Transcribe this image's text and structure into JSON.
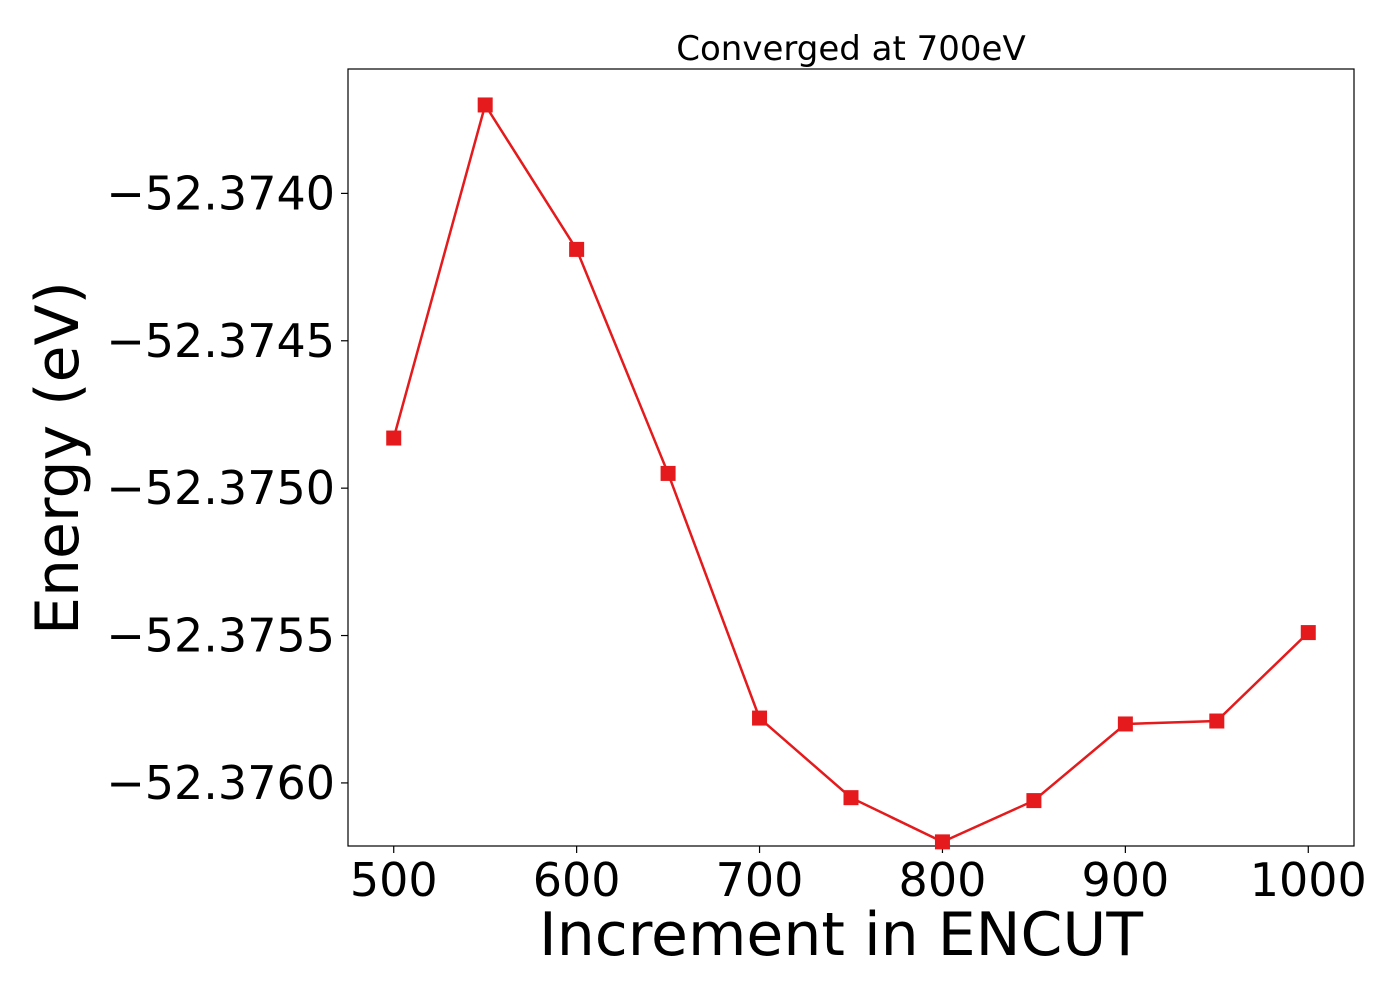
{
  "chart_data": {
    "type": "line",
    "title": "Converged at 700eV",
    "xlabel": "Increment in ENCUT",
    "ylabel": "Energy (eV)",
    "x": [
      500,
      550,
      600,
      650,
      700,
      750,
      800,
      850,
      900,
      950,
      1000
    ],
    "series": [
      {
        "color": "#e41a1c",
        "marker": "square",
        "values": [
          -52.37483,
          -52.3737,
          -52.37419,
          -52.37495,
          -52.37578,
          -52.37605,
          -52.3762,
          -52.37606,
          -52.3758,
          -52.37579,
          -52.37549
        ]
      }
    ],
    "xlim": [
      475,
      1025
    ],
    "ylim": [
      -52.376214,
      -52.373578
    ],
    "xticks": [
      500,
      600,
      700,
      800,
      900,
      1000
    ],
    "xtick_labels": [
      "500",
      "600",
      "700",
      "800",
      "900",
      "1000"
    ],
    "yticks": [
      -52.374,
      -52.3745,
      -52.375,
      -52.3755,
      -52.376
    ],
    "ytick_labels": [
      "−52.3740",
      "−52.3745",
      "−52.3750",
      "−52.3755",
      "−52.3760"
    ],
    "grid": false,
    "legend": "none"
  }
}
